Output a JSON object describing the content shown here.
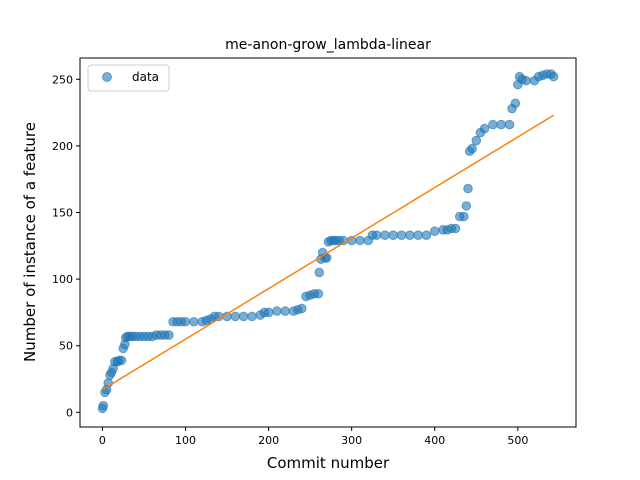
{
  "chart_data": {
    "type": "scatter",
    "title": "me-anon-grow_lambda-linear",
    "xlabel": "Commit number",
    "ylabel": "Number of instance of a feature",
    "xlim": [
      -27,
      570
    ],
    "ylim": [
      -11,
      266
    ],
    "xticks": [
      0,
      100,
      200,
      300,
      400,
      500
    ],
    "yticks": [
      0,
      50,
      100,
      150,
      200,
      250
    ],
    "grid": false,
    "legend_position": "top-left",
    "colors": {
      "data": "#1f77b4",
      "fit": "#ff7f0e"
    },
    "series": [
      {
        "name": "data",
        "style": "markers",
        "x": [
          0,
          1,
          3,
          5,
          7,
          9,
          11,
          13,
          15,
          18,
          20,
          23,
          25,
          27,
          28,
          30,
          33,
          36,
          40,
          45,
          50,
          55,
          60,
          65,
          70,
          75,
          80,
          85,
          90,
          95,
          100,
          110,
          120,
          125,
          130,
          135,
          140,
          150,
          160,
          170,
          180,
          190,
          195,
          200,
          210,
          220,
          230,
          235,
          240,
          245,
          250,
          255,
          260,
          261,
          263,
          265,
          268,
          270,
          272,
          275,
          278,
          281,
          285,
          290,
          300,
          310,
          320,
          325,
          330,
          340,
          350,
          360,
          370,
          380,
          390,
          400,
          410,
          415,
          420,
          425,
          430,
          435,
          438,
          440,
          442,
          445,
          450,
          455,
          460,
          470,
          480,
          490,
          493,
          497,
          500,
          502,
          505,
          510,
          520,
          525,
          530,
          535,
          540,
          543
        ],
        "y": [
          3,
          5,
          15,
          17,
          22,
          28,
          30,
          33,
          38,
          38,
          39,
          39,
          48,
          51,
          56,
          57,
          57,
          57,
          57,
          57,
          57,
          57,
          57,
          58,
          58,
          58,
          58,
          68,
          68,
          68,
          68,
          68,
          68,
          69,
          70,
          72,
          72,
          72,
          72,
          72,
          72,
          73,
          75,
          75,
          76,
          76,
          76,
          77,
          78,
          87,
          88,
          89,
          89,
          105,
          115,
          120,
          116,
          116,
          128,
          129,
          129,
          129,
          129,
          129,
          129,
          129,
          129,
          133,
          133,
          133,
          133,
          133,
          133,
          133,
          133,
          136,
          137,
          137,
          138,
          138,
          147,
          147,
          155,
          168,
          196,
          198,
          204,
          210,
          213,
          216,
          216,
          216,
          228,
          232,
          246,
          252,
          250,
          249,
          249,
          252,
          253,
          254,
          254,
          252
        ]
      },
      {
        "name": "",
        "style": "line",
        "x": [
          0,
          543
        ],
        "y": [
          17,
          223
        ]
      }
    ],
    "legend": [
      {
        "label": "data",
        "marker": "circle"
      }
    ]
  }
}
